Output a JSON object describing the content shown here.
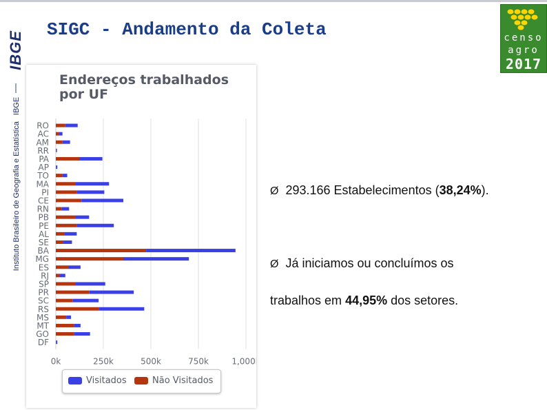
{
  "header": {
    "title": "SIGC - Andamento da Coleta"
  },
  "sidebar": {
    "logo": "IBGE",
    "institute": "Instituto Brasileiro de Geografia e Estatística",
    "institute_abbr": "IBGE"
  },
  "censo_logo": {
    "line1": "censo",
    "line2": "agro",
    "line3": "2017"
  },
  "bullets": {
    "marker": "Ø",
    "item1_pre": "293.166 Estabelecimentos  (",
    "item1_bold": "38,24%",
    "item1_post": ").",
    "item2_line1": "Já iniciamos ou concluímos os",
    "item2_pre": "trabalhos em ",
    "item2_bold": "44,95%",
    "item2_post": " dos setores."
  },
  "colors": {
    "visitados": "#3b3fe6",
    "nao_visitados": "#b5350e",
    "title": "#1a3d8a",
    "censo_green": "#3a8a2e"
  },
  "chart_data": {
    "type": "bar",
    "orientation": "horizontal",
    "stacked": true,
    "title": "Endereços trabalhados por UF",
    "categories": [
      "RO",
      "AC",
      "AM",
      "RR",
      "PA",
      "AP",
      "TO",
      "MA",
      "PI",
      "CE",
      "RN",
      "PB",
      "PE",
      "AL",
      "SE",
      "BA",
      "MG",
      "ES",
      "RJ",
      "SP",
      "PR",
      "SC",
      "RS",
      "MS",
      "MT",
      "GO",
      "DF"
    ],
    "series": [
      {
        "name": "Não Visitados",
        "color": "#b5350e",
        "values": [
          50000,
          15000,
          35000,
          3000,
          125000,
          3000,
          35000,
          105000,
          110000,
          135000,
          30000,
          105000,
          110000,
          45000,
          40000,
          475000,
          355000,
          65000,
          20000,
          105000,
          175000,
          90000,
          225000,
          55000,
          95000,
          95000,
          3000
        ]
      },
      {
        "name": "Visitados",
        "color": "#3b3fe6",
        "values": [
          65000,
          20000,
          40000,
          3000,
          120000,
          5000,
          25000,
          175000,
          145000,
          220000,
          40000,
          70000,
          195000,
          65000,
          45000,
          470000,
          345000,
          65000,
          30000,
          155000,
          235000,
          135000,
          240000,
          25000,
          35000,
          85000,
          5000
        ]
      }
    ],
    "xlim": [
      0,
      1000000
    ],
    "xticks": [
      "0k",
      "250k",
      "500k",
      "750k",
      "1,000k"
    ],
    "grid": true,
    "legend": "bottom",
    "legend_entries": [
      "Visitados",
      "Não Visitados"
    ]
  }
}
